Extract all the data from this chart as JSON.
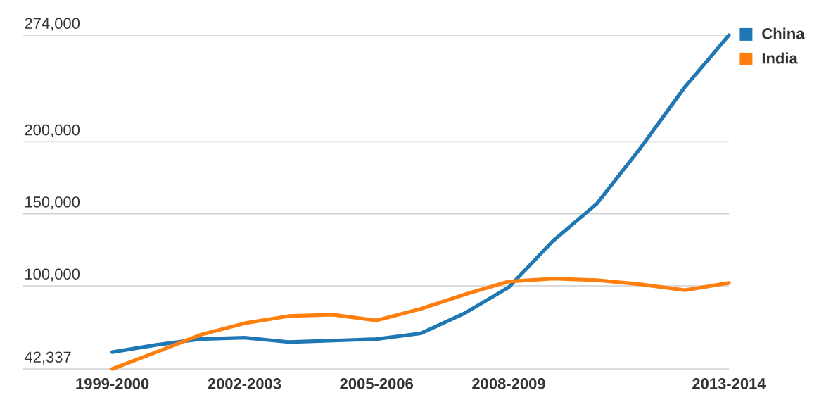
{
  "chart_data": {
    "type": "line",
    "categories": [
      "1999-2000",
      null,
      null,
      "2002-2003",
      null,
      null,
      "2005-2006",
      null,
      null,
      "2008-2009",
      null,
      null,
      null,
      null,
      "2013-2014"
    ],
    "series": [
      {
        "name": "China",
        "color": "#1f77b4",
        "values": [
          54000,
          59000,
          63000,
          64000,
          61000,
          62000,
          63000,
          67000,
          81000,
          99000,
          131000,
          157000,
          196000,
          238000,
          274000
        ]
      },
      {
        "name": "India",
        "color": "#ff7f0e",
        "values": [
          42337,
          54000,
          66000,
          74000,
          79000,
          80000,
          76000,
          84000,
          94000,
          103000,
          105000,
          104000,
          101000,
          97000,
          102000
        ]
      }
    ],
    "ylim": [
      42337,
      274000
    ],
    "yticks": [
      {
        "value": 42337,
        "label": "42,337"
      },
      {
        "value": 100000,
        "label": "100,000"
      },
      {
        "value": 150000,
        "label": "150,000"
      },
      {
        "value": 200000,
        "label": "200,000"
      },
      {
        "value": 274000,
        "label": "274,000"
      }
    ],
    "grid": "y",
    "legend": "top right",
    "line_style": "solid",
    "marker": "none"
  }
}
